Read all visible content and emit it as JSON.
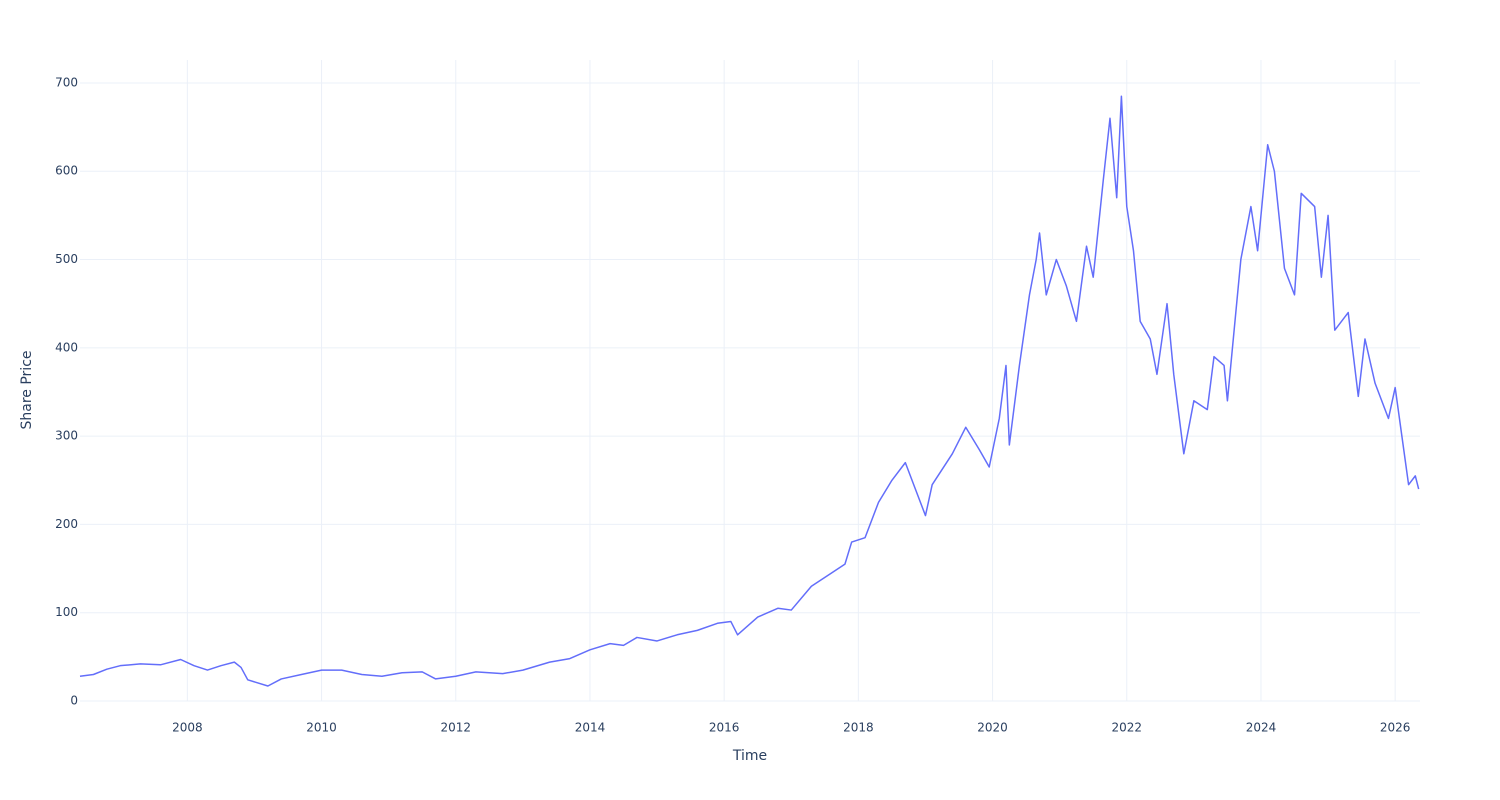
{
  "chart_data": {
    "type": "line",
    "x_label": "Time",
    "y_label": "Share Price",
    "x": [
      2006.4,
      2006.6,
      2006.8,
      2007.0,
      2007.3,
      2007.6,
      2007.9,
      2008.1,
      2008.3,
      2008.5,
      2008.7,
      2008.8,
      2008.9,
      2009.2,
      2009.4,
      2009.7,
      2010.0,
      2010.3,
      2010.6,
      2010.9,
      2011.2,
      2011.5,
      2011.7,
      2012.0,
      2012.3,
      2012.7,
      2013.0,
      2013.4,
      2013.7,
      2014.0,
      2014.3,
      2014.5,
      2014.7,
      2015.0,
      2015.3,
      2015.6,
      2015.9,
      2016.1,
      2016.2,
      2016.5,
      2016.8,
      2017.0,
      2017.3,
      2017.6,
      2017.8,
      2017.9,
      2018.1,
      2018.3,
      2018.5,
      2018.7,
      2018.85,
      2019.0,
      2019.1,
      2019.4,
      2019.6,
      2019.8,
      2019.95,
      2020.1,
      2020.2,
      2020.25,
      2020.4,
      2020.55,
      2020.65,
      2020.7,
      2020.8,
      2020.95,
      2021.1,
      2021.25,
      2021.4,
      2021.5,
      2021.65,
      2021.75,
      2021.85,
      2021.92,
      2022.0,
      2022.1,
      2022.2,
      2022.35,
      2022.45,
      2022.6,
      2022.7,
      2022.85,
      2023.0,
      2023.2,
      2023.3,
      2023.45,
      2023.5,
      2023.7,
      2023.85,
      2023.95,
      2024.1,
      2024.2,
      2024.35,
      2024.5,
      2024.6,
      2024.8,
      2024.9,
      2025.0,
      2025.1,
      2025.3,
      2025.45,
      2025.55,
      2025.7,
      2025.9,
      2026.0,
      2026.1,
      2026.2,
      2026.3,
      2026.35
    ],
    "series": [
      {
        "name": "Share Price",
        "color": "#636efa",
        "values": [
          28,
          30,
          36,
          40,
          42,
          41,
          47,
          40,
          35,
          40,
          44,
          38,
          24,
          17,
          25,
          30,
          35,
          35,
          30,
          28,
          32,
          33,
          25,
          28,
          33,
          31,
          35,
          44,
          48,
          58,
          65,
          63,
          72,
          68,
          75,
          80,
          88,
          90,
          75,
          95,
          105,
          103,
          130,
          145,
          155,
          180,
          185,
          225,
          250,
          270,
          240,
          210,
          245,
          280,
          310,
          285,
          265,
          320,
          380,
          290,
          380,
          460,
          500,
          530,
          460,
          500,
          470,
          430,
          515,
          480,
          590,
          660,
          570,
          685,
          560,
          510,
          430,
          410,
          370,
          450,
          370,
          280,
          340,
          330,
          390,
          380,
          340,
          500,
          560,
          510,
          630,
          600,
          490,
          460,
          575,
          560,
          480,
          550,
          420,
          440,
          345,
          410,
          360,
          320,
          355,
          300,
          245,
          255,
          240
        ]
      }
    ],
    "xlim": [
      2006.4,
      2026.37
    ],
    "xticks": [
      2008,
      2010,
      2012,
      2014,
      2016,
      2018,
      2020,
      2022,
      2024,
      2026
    ],
    "ylim": [
      0,
      726
    ],
    "yticks": [
      0,
      100,
      200,
      300,
      400,
      500,
      600,
      700
    ],
    "grid": true
  }
}
